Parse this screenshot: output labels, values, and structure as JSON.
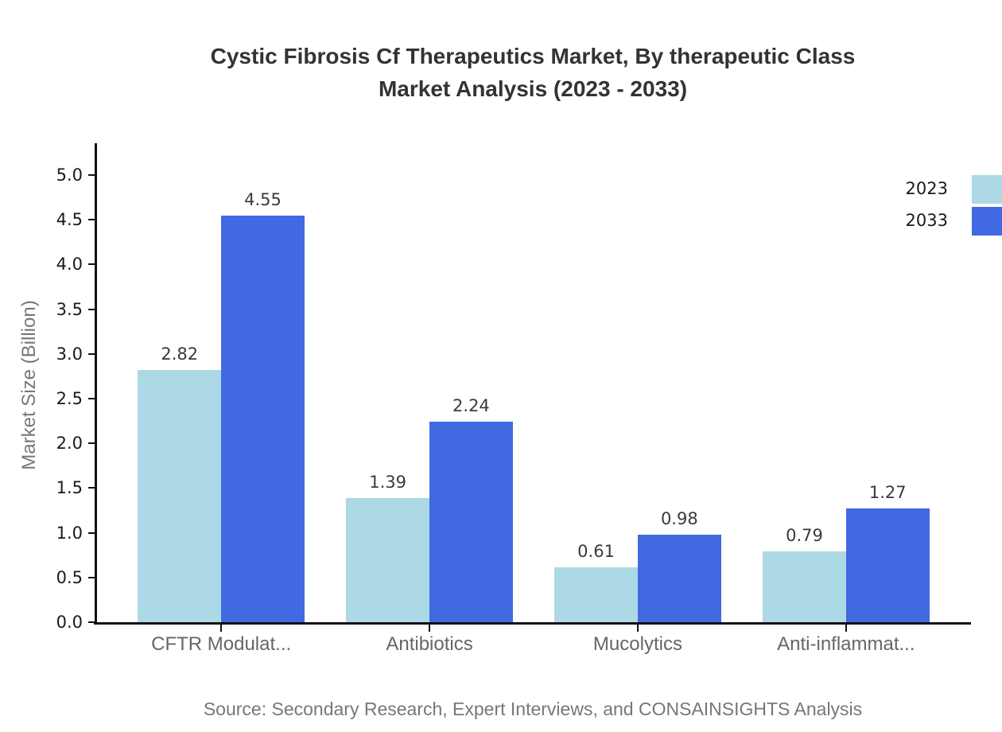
{
  "title": {
    "line1": "Cystic Fibrosis Cf Therapeutics Market, By therapeutic Class",
    "line2": "Market Analysis (2023 - 2033)"
  },
  "source_note": "Source: Secondary Research, Expert Interviews, and CONSAINSIGHTS Analysis",
  "chart_data": {
    "type": "bar",
    "title": "Cystic Fibrosis Cf Therapeutics Market, By therapeutic Class Market Analysis (2023 - 2033)",
    "categories": [
      "CFTR Modulat...",
      "Antibiotics",
      "Mucolytics",
      "Anti-inflammat..."
    ],
    "series": [
      {
        "name": "2023",
        "color": "#ADD8E6",
        "values": [
          2.82,
          1.39,
          0.61,
          0.79
        ]
      },
      {
        "name": "2033",
        "color": "#4169E1",
        "values": [
          4.55,
          2.24,
          0.98,
          1.27
        ]
      }
    ],
    "xlabel": "",
    "ylabel": "Market Size (Billion)",
    "ylim": [
      0,
      5.4
    ],
    "yticks": [
      0,
      0.5,
      1,
      1.5,
      2,
      2.5,
      3,
      3.5,
      4,
      4.5,
      5
    ],
    "grid": false,
    "legend_position": "top-right",
    "bar_value_labels": true,
    "colors": {
      "background": "#ffffff",
      "axis": "#111111",
      "title_text": "#333333",
      "muted_text": "#777777"
    }
  }
}
